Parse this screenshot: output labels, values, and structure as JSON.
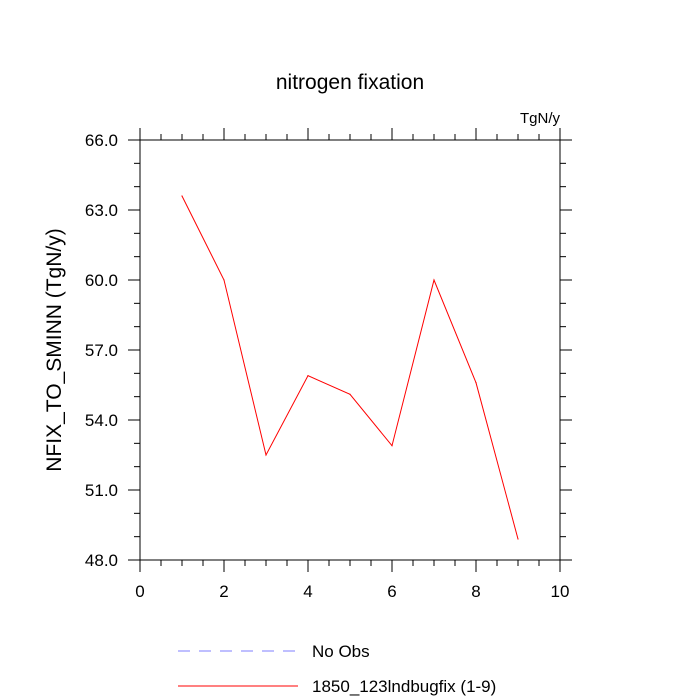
{
  "chart_data": {
    "type": "line",
    "title": "nitrogen fixation",
    "units_label": "TgN/y",
    "xlabel": "",
    "ylabel": "NFIX_TO_SMINN  (TgN/y)",
    "xlim": [
      0,
      10
    ],
    "ylim": [
      48,
      66
    ],
    "x_ticks": [
      0,
      2,
      4,
      6,
      8,
      10
    ],
    "x_tick_labels": [
      "0",
      "2",
      "4",
      "6",
      "8",
      "10"
    ],
    "y_ticks": [
      48,
      51,
      54,
      57,
      60,
      63,
      66
    ],
    "y_tick_labels": [
      "48.0",
      "51.0",
      "54.0",
      "57.0",
      "60.0",
      "63.0",
      "66.0"
    ],
    "series": [
      {
        "name": "1850_123lndbugfix (1-9)",
        "color": "#ff0000",
        "dash": "solid",
        "x": [
          1,
          2,
          3,
          4,
          5,
          6,
          7,
          8,
          9
        ],
        "values": [
          63.6,
          60.0,
          52.5,
          55.9,
          55.1,
          52.9,
          60.0,
          55.6,
          48.9
        ]
      }
    ],
    "legend": [
      {
        "label": "No Obs",
        "color": "#7f7fff",
        "dash": "dashed"
      },
      {
        "label": "1850_123lndbugfix (1-9)",
        "color": "#ff0000",
        "dash": "solid"
      }
    ],
    "legend_position": "bottom"
  }
}
